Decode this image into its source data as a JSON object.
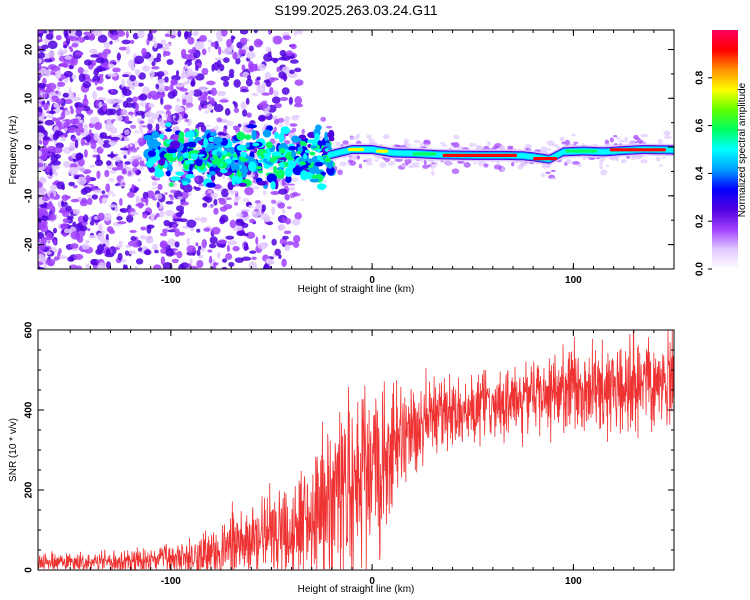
{
  "title": "S199.2025.263.03.24.G11",
  "chart_data": [
    {
      "type": "heatmap",
      "xlabel": "Height of straight line (km)",
      "ylabel": "Frequency (Hz)",
      "xlim": [
        -166,
        150
      ],
      "ylim": [
        -25,
        24
      ],
      "xticks": [
        -100,
        0,
        100
      ],
      "yticks": [
        20,
        10,
        0,
        -10,
        -20
      ],
      "colorbar": {
        "label": "Normalized spectral amplitude",
        "range": [
          0,
          1
        ],
        "ticks": [
          "0.0",
          "0.2",
          "0.4",
          "0.6",
          "0.8"
        ],
        "colors": [
          "#ffffff",
          "#e0c8ff",
          "#a040ff",
          "#5000e0",
          "#0000ff",
          "#00a0ff",
          "#00ffff",
          "#00ff60",
          "#60ff00",
          "#ffff00",
          "#ff9000",
          "#ff0000",
          "#ff0060"
        ]
      },
      "ridge": [
        {
          "x": -110,
          "f": -1.5
        },
        {
          "x": -90,
          "f": -2
        },
        {
          "x": -70,
          "f": -2.5
        },
        {
          "x": -50,
          "f": -2.5
        },
        {
          "x": -30,
          "f": -2.5
        },
        {
          "x": -20,
          "f": -1.5
        },
        {
          "x": -10,
          "f": -0.5
        },
        {
          "x": 0,
          "f": -0.5
        },
        {
          "x": 10,
          "f": -1.2
        },
        {
          "x": 20,
          "f": -1.3
        },
        {
          "x": 35,
          "f": -1.6
        },
        {
          "x": 50,
          "f": -1.7
        },
        {
          "x": 65,
          "f": -1.7
        },
        {
          "x": 75,
          "f": -1.8
        },
        {
          "x": 80,
          "f": -2.0
        },
        {
          "x": 88,
          "f": -2.5
        },
        {
          "x": 95,
          "f": -1.0
        },
        {
          "x": 105,
          "f": -0.8
        },
        {
          "x": 115,
          "f": -1.0
        },
        {
          "x": 125,
          "f": -0.7
        },
        {
          "x": 135,
          "f": -0.5
        },
        {
          "x": 150,
          "f": -0.6
        }
      ]
    },
    {
      "type": "line",
      "xlabel": "Height of straight line (km)",
      "ylabel": "SNR (10 * v/v)",
      "xlim": [
        -166,
        150
      ],
      "ylim": [
        0,
        600
      ],
      "xticks": [
        -100,
        0,
        100
      ],
      "yticks": [
        0,
        200,
        400,
        600
      ],
      "color": "#ef3333",
      "trend": [
        {
          "x": -166,
          "y": 18
        },
        {
          "x": -120,
          "y": 20
        },
        {
          "x": -100,
          "y": 30
        },
        {
          "x": -80,
          "y": 45
        },
        {
          "x": -60,
          "y": 70
        },
        {
          "x": -40,
          "y": 110
        },
        {
          "x": -30,
          "y": 145
        },
        {
          "x": -20,
          "y": 180
        },
        {
          "x": -10,
          "y": 220
        },
        {
          "x": 0,
          "y": 250
        },
        {
          "x": 10,
          "y": 300
        },
        {
          "x": 20,
          "y": 345
        },
        {
          "x": 30,
          "y": 385
        },
        {
          "x": 50,
          "y": 405
        },
        {
          "x": 70,
          "y": 425
        },
        {
          "x": 90,
          "y": 445
        },
        {
          "x": 110,
          "y": 460
        },
        {
          "x": 130,
          "y": 470
        },
        {
          "x": 150,
          "y": 485
        }
      ],
      "noise": [
        {
          "x": -166,
          "y": 12
        },
        {
          "x": -120,
          "y": 15
        },
        {
          "x": -100,
          "y": 25
        },
        {
          "x": -80,
          "y": 35
        },
        {
          "x": -60,
          "y": 55
        },
        {
          "x": -40,
          "y": 85
        },
        {
          "x": -20,
          "y": 120
        },
        {
          "x": -5,
          "y": 130
        },
        {
          "x": 5,
          "y": 110
        },
        {
          "x": 20,
          "y": 65
        },
        {
          "x": 40,
          "y": 45
        },
        {
          "x": 80,
          "y": 50
        },
        {
          "x": 110,
          "y": 60
        },
        {
          "x": 150,
          "y": 60
        }
      ],
      "spikes": [
        {
          "x": 6,
          "y": 472
        },
        {
          "x": -10,
          "y": 380
        },
        {
          "x": -22,
          "y": 340
        },
        {
          "x": 4,
          "y": 40
        },
        {
          "x": 147,
          "y": 602
        },
        {
          "x": 128,
          "y": 590
        },
        {
          "x": 99,
          "y": 545
        },
        {
          "x": 117,
          "y": 320
        },
        {
          "x": 139,
          "y": 345
        }
      ]
    }
  ]
}
